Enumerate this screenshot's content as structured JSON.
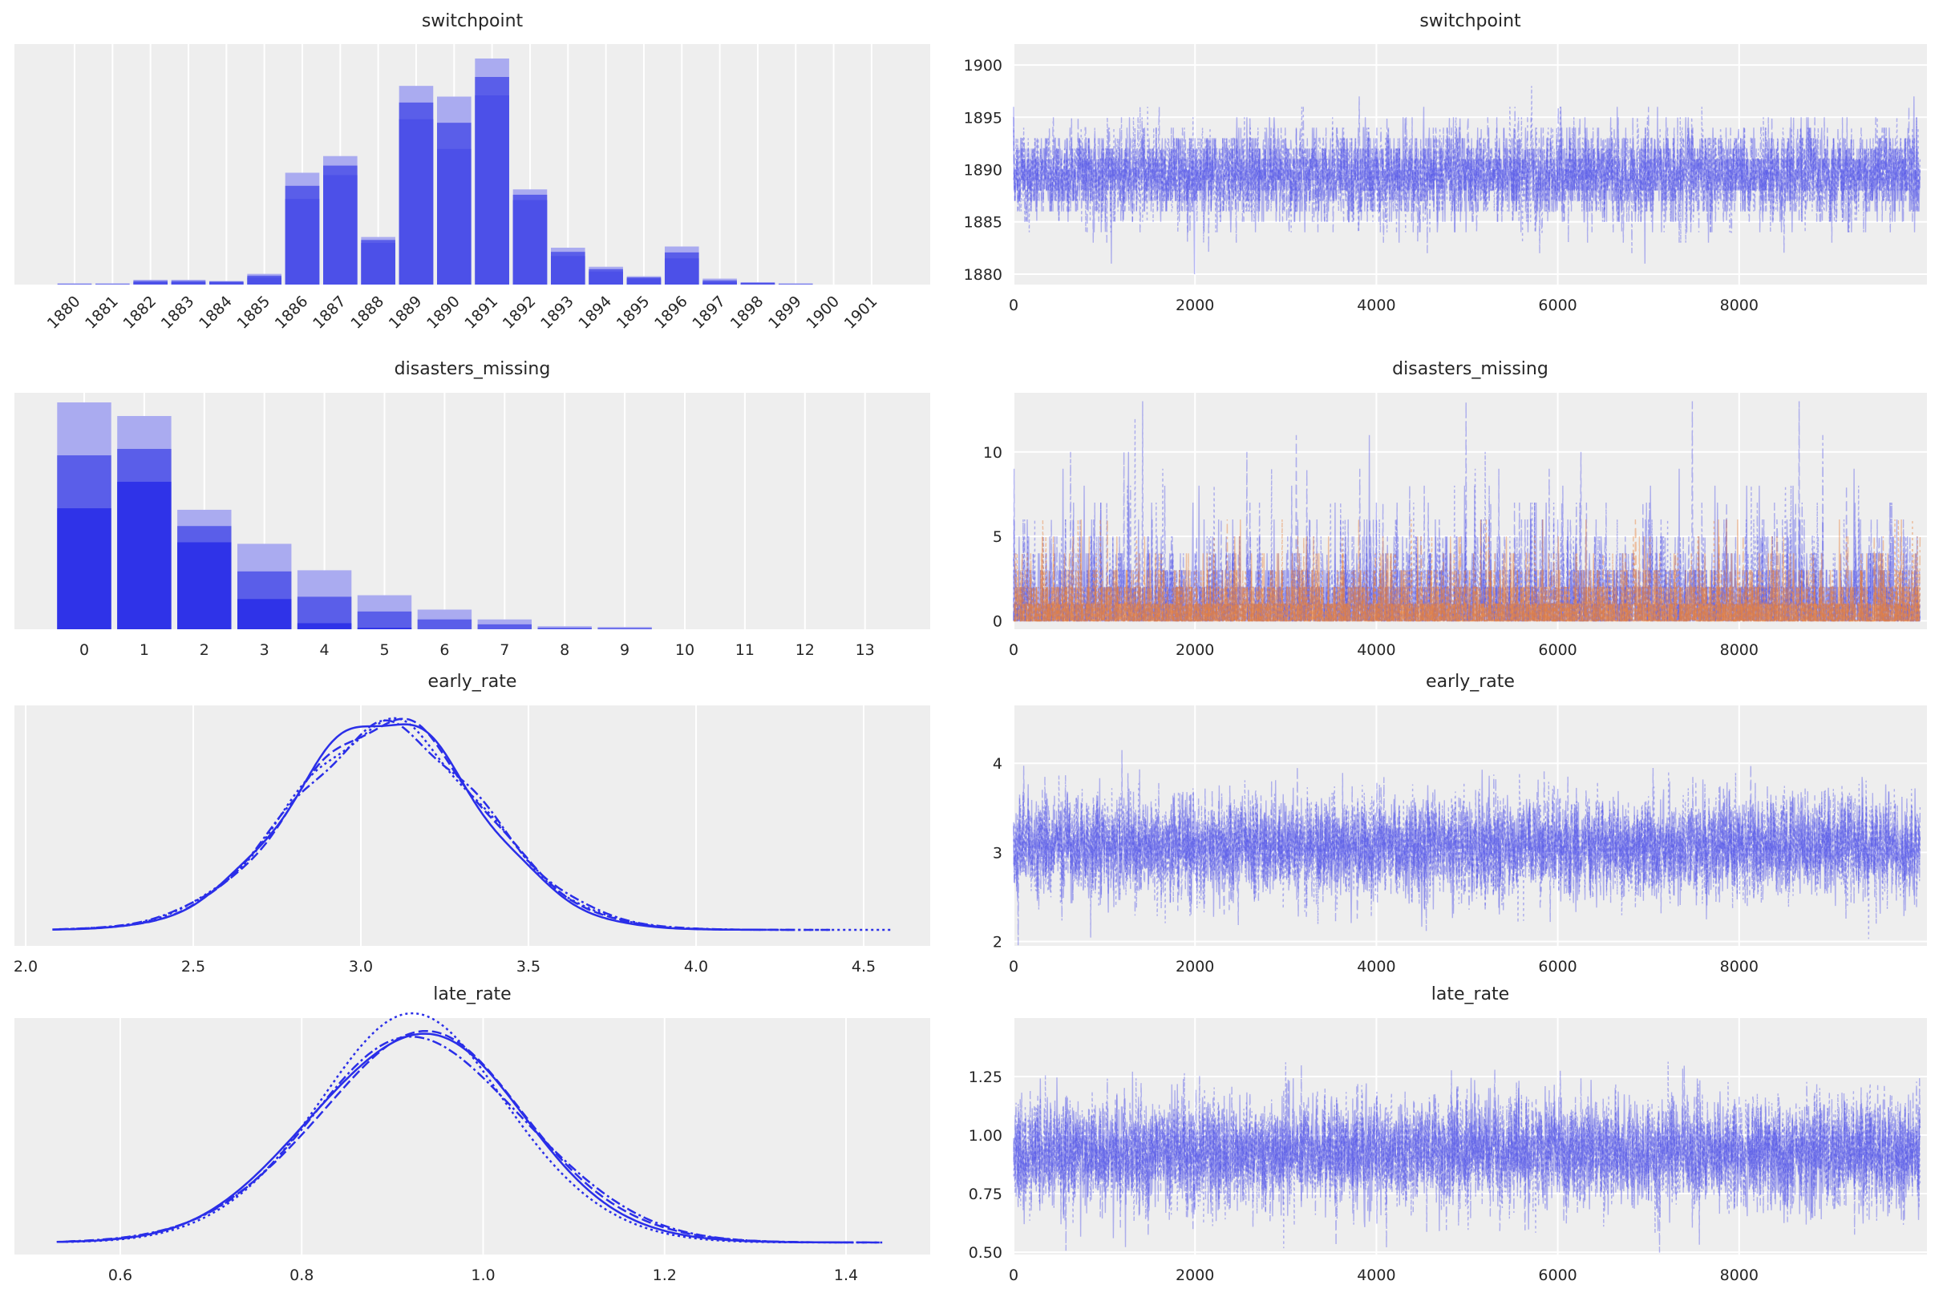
{
  "colors": {
    "panel_bg": "#eeeeee",
    "grid": "#ffffff",
    "bar": "#4c50e8",
    "bar_light": "#aaabf0",
    "line": "#2a2ee8",
    "trace": "#4a4ee8",
    "trace_orange": "#e8803a",
    "text": "#262626"
  },
  "chart_data": [
    {
      "type": "bar",
      "title": "switchpoint",
      "panel": "left",
      "categories": [
        "1880",
        "1881",
        "1882",
        "1883",
        "1884",
        "1885",
        "1886",
        "1887",
        "1888",
        "1889",
        "1890",
        "1891",
        "1892",
        "1893",
        "1894",
        "1895",
        "1896",
        "1897",
        "1898",
        "1899",
        "1900",
        "1901"
      ],
      "values_max": [
        0.001,
        0.001,
        0.004,
        0.004,
        0.003,
        0.009,
        0.094,
        0.108,
        0.04,
        0.167,
        0.158,
        0.19,
        0.08,
        0.031,
        0.015,
        0.007,
        0.032,
        0.005,
        0.002,
        0.001,
        0,
        0
      ],
      "values_min": [
        0,
        0,
        0.002,
        0.002,
        0.002,
        0.006,
        0.072,
        0.092,
        0.035,
        0.139,
        0.114,
        0.159,
        0.071,
        0.024,
        0.011,
        0.005,
        0.022,
        0.002,
        0.001,
        0,
        0,
        0
      ],
      "xlabel": "",
      "ylabel": ""
    },
    {
      "type": "line",
      "title": "switchpoint",
      "panel": "right",
      "subtype": "trace",
      "xlim": [
        0,
        10000
      ],
      "xticks": [
        "0",
        "2000",
        "4000",
        "6000",
        "8000"
      ],
      "ylim": [
        1879,
        1902
      ],
      "yticks": [
        "1880",
        "1885",
        "1890",
        "1895",
        "1900"
      ],
      "series": [
        {
          "name": "switchpoint",
          "mean": 1889.6,
          "sd": 2.2,
          "min": 1880,
          "max": 1901,
          "chains": 4
        }
      ]
    },
    {
      "type": "bar",
      "title": "disasters_missing",
      "panel": "left",
      "categories": [
        "0",
        "1",
        "2",
        "3",
        "4",
        "5",
        "6",
        "7",
        "8",
        "9",
        "10",
        "11",
        "12",
        "13"
      ],
      "values_max": [
        0.3,
        0.282,
        0.158,
        0.113,
        0.078,
        0.045,
        0.026,
        0.013,
        0.004,
        0.003,
        0,
        0,
        0,
        0
      ],
      "values_min": [
        0.16,
        0.195,
        0.115,
        0.04,
        0.008,
        0.002,
        0,
        0,
        0,
        0,
        0,
        0,
        0,
        0
      ]
    },
    {
      "type": "line",
      "title": "disasters_missing",
      "panel": "right",
      "subtype": "trace",
      "xlim": [
        0,
        10000
      ],
      "xticks": [
        "0",
        "2000",
        "4000",
        "6000",
        "8000"
      ],
      "ylim": [
        -0.5,
        13.5
      ],
      "yticks": [
        "0",
        "5",
        "10"
      ],
      "series": [
        {
          "name": "disasters_missing[0]",
          "color": "blue",
          "max": 13,
          "chains": 4
        },
        {
          "name": "disasters_missing[1]",
          "color": "orange",
          "max": 6,
          "chains": 4
        }
      ]
    },
    {
      "type": "line",
      "title": "early_rate",
      "panel": "left",
      "subtype": "kde",
      "xticks": [
        "2.0",
        "2.5",
        "3.0",
        "3.5",
        "4.0",
        "4.5"
      ],
      "xlim": [
        2.0,
        4.6
      ],
      "series": [
        {
          "chain": 0,
          "style": "solid",
          "mean": 3.07,
          "sd": 0.275,
          "range": [
            2.08,
            4.2
          ]
        },
        {
          "chain": 1,
          "style": "dashed",
          "mean": 3.08,
          "sd": 0.28,
          "range": [
            2.08,
            4.3
          ]
        },
        {
          "chain": 2,
          "style": "dotted",
          "mean": 3.075,
          "sd": 0.285,
          "range": [
            2.1,
            4.58
          ]
        },
        {
          "chain": 3,
          "style": "dashdot",
          "mean": 3.08,
          "sd": 0.29,
          "range": [
            2.1,
            4.4
          ]
        }
      ]
    },
    {
      "type": "line",
      "title": "early_rate",
      "panel": "right",
      "subtype": "trace",
      "xlim": [
        0,
        10000
      ],
      "xticks": [
        "0",
        "2000",
        "4000",
        "6000",
        "8000"
      ],
      "ylim": [
        1.95,
        4.65
      ],
      "yticks": [
        "2",
        "3",
        "4"
      ],
      "series": [
        {
          "name": "early_rate",
          "mean": 3.07,
          "sd": 0.28,
          "chains": 4
        }
      ]
    },
    {
      "type": "line",
      "title": "late_rate",
      "panel": "left",
      "subtype": "kde",
      "xticks": [
        "0.6",
        "0.8",
        "1.0",
        "1.2",
        "1.4"
      ],
      "xlim": [
        0.48,
        1.48
      ],
      "series": [
        {
          "chain": 0,
          "style": "solid",
          "mean": 0.925,
          "sd": 0.115,
          "range": [
            0.53,
            1.4
          ]
        },
        {
          "chain": 1,
          "style": "dashed",
          "mean": 0.93,
          "sd": 0.118,
          "range": [
            0.53,
            1.44
          ]
        },
        {
          "chain": 2,
          "style": "dotted",
          "mean": 0.922,
          "sd": 0.11,
          "range": [
            0.54,
            1.42
          ]
        },
        {
          "chain": 3,
          "style": "dashdot",
          "mean": 0.93,
          "sd": 0.12,
          "range": [
            0.54,
            1.44
          ]
        }
      ]
    },
    {
      "type": "line",
      "title": "late_rate",
      "panel": "right",
      "subtype": "trace",
      "xlim": [
        0,
        10000
      ],
      "xticks": [
        "0",
        "2000",
        "4000",
        "6000",
        "8000"
      ],
      "ylim": [
        0.49,
        1.5
      ],
      "yticks": [
        "0.50",
        "0.75",
        "1.00",
        "1.25"
      ],
      "series": [
        {
          "name": "late_rate",
          "mean": 0.925,
          "sd": 0.115,
          "chains": 4
        }
      ]
    }
  ]
}
